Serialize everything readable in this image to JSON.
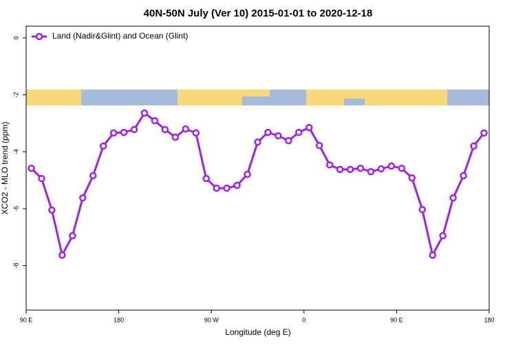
{
  "chart_data": {
    "type": "line",
    "title": "40N-50N July (Ver 10)   2015-01-01 to 2020-12-18",
    "x_label": "Longitude (deg E)",
    "y_label": "XCO2 - MLO trend (ppm)",
    "x": [
      95,
      105,
      115,
      125,
      135,
      145,
      155,
      165,
      175,
      185,
      195,
      205,
      215,
      225,
      235,
      245,
      255,
      265,
      275,
      285,
      295,
      305,
      315,
      325,
      335,
      345,
      355,
      365,
      375,
      385,
      395,
      405,
      415,
      425,
      435,
      445,
      455,
      465,
      475,
      485,
      495,
      505,
      515,
      525,
      535
    ],
    "series": [
      {
        "name": "Land (Nadir&Glint) and Ocean (Glint)",
        "color": "#a020f0",
        "values": [
          -4.58,
          -4.94,
          -6.05,
          -7.63,
          -6.95,
          -5.62,
          -4.84,
          -3.8,
          -3.34,
          -3.32,
          -3.22,
          -2.64,
          -2.91,
          -3.22,
          -3.49,
          -3.2,
          -3.34,
          -4.94,
          -5.28,
          -5.28,
          -5.18,
          -4.79,
          -3.66,
          -3.32,
          -3.44,
          -3.61,
          -3.32,
          -3.15,
          -3.78,
          -4.46,
          -4.62,
          -4.62,
          -4.58,
          -4.7,
          -4.6,
          -4.5,
          -4.58,
          -4.92,
          -6.03,
          -7.63,
          -6.95,
          -5.62,
          -4.84,
          -3.8,
          -3.34
        ]
      }
    ],
    "xlim": [
      90,
      540
    ],
    "xticks": [
      {
        "value": 90,
        "label": "90 E"
      },
      180,
      {
        "value": 270,
        "label": "90 W"
      },
      {
        "value": 360,
        "label": "0"
      },
      {
        "value": 450,
        "label": "90 E"
      },
      {
        "value": 540,
        "label": "180"
      }
    ],
    "ylim": [
      -9.56,
      0.41
    ],
    "yticks": [
      0,
      -2,
      -4,
      -6,
      -8
    ],
    "legend": "top-left",
    "grid": false
  }
}
